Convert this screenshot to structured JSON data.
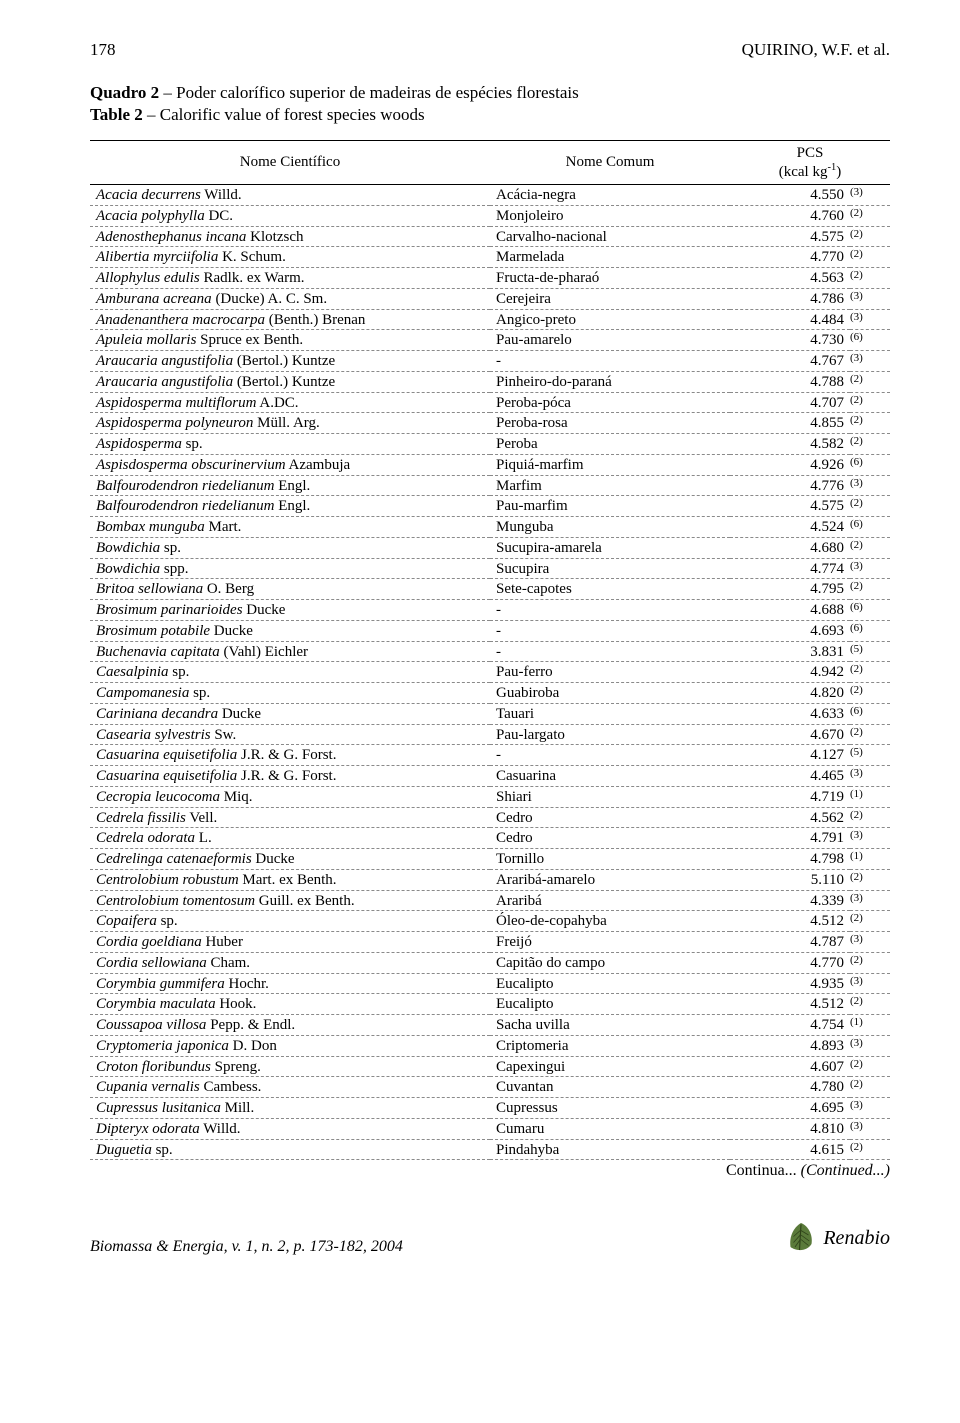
{
  "header": {
    "page_number": "178",
    "authors": "QUIRINO, W.F. et al."
  },
  "caption": {
    "line1_bold": "Quadro 2",
    "line1_rest": " – Poder  calorífico superior de madeiras de espécies florestais",
    "line2_bold": "Table 2",
    "line2_rest": " – Calorific value of forest species woods"
  },
  "columns": {
    "sci": "Nome Científico",
    "common": "Nome Comum",
    "pcs_line1": "PCS",
    "pcs_line2_pre": "(kcal kg",
    "pcs_line2_sup": "-1",
    "pcs_line2_post": ")"
  },
  "rows": [
    {
      "sci_it": "Acacia decurrens",
      "sci_rest": " Willd.",
      "common": "Acácia-negra",
      "pcs": "4.550",
      "ref": "(3)"
    },
    {
      "sci_it": "Acacia polyphylla",
      "sci_rest": " DC.",
      "common": "Monjoleiro",
      "pcs": "4.760",
      "ref": "(2)"
    },
    {
      "sci_it": "Adenosthephanus incana",
      "sci_rest": " Klotzsch",
      "common": "Carvalho-nacional",
      "pcs": "4.575",
      "ref": "(2)"
    },
    {
      "sci_it": "Alibertia myrciifolia",
      "sci_rest": " K. Schum.",
      "common": "Marmelada",
      "pcs": "4.770",
      "ref": "(2)"
    },
    {
      "sci_it": "Allophylus edulis",
      "sci_rest": " Radlk. ex Warm.",
      "common": "Fructa-de-pharaó",
      "pcs": "4.563",
      "ref": "(2)"
    },
    {
      "sci_it": "Amburana acreana",
      "sci_rest": " (Ducke) A. C. Sm.",
      "common": "Cerejeira",
      "pcs": "4.786",
      "ref": "(3)"
    },
    {
      "sci_it": "Anadenanthera macrocarpa",
      "sci_rest": " (Benth.) Brenan",
      "common": "Angico-preto",
      "pcs": "4.484",
      "ref": "(3)"
    },
    {
      "sci_it": "Apuleia mollaris",
      "sci_rest": " Spruce ex Benth.",
      "common": "Pau-amarelo",
      "pcs": "4.730",
      "ref": "(6)"
    },
    {
      "sci_it": "Araucaria angustifolia",
      "sci_rest": " (Bertol.) Kuntze",
      "common": "-",
      "pcs": "4.767",
      "ref": "(3)"
    },
    {
      "sci_it": "Araucaria angustifolia",
      "sci_rest": " (Bertol.) Kuntze",
      "common": "Pinheiro-do-paraná",
      "pcs": "4.788",
      "ref": "(2)"
    },
    {
      "sci_it": "Aspidosperma multiflorum",
      "sci_rest": " A.DC.",
      "common": "Peroba-póca",
      "pcs": "4.707",
      "ref": "(2)"
    },
    {
      "sci_it": "Aspidosperma polyneuron",
      "sci_rest": " Müll. Arg.",
      "common": "Peroba-rosa",
      "pcs": "4.855",
      "ref": "(2)"
    },
    {
      "sci_it": "Aspidosperma",
      "sci_rest": " sp.",
      "common": "Peroba",
      "pcs": "4.582",
      "ref": "(2)"
    },
    {
      "sci_it": "Aspisdosperma obscurinervium",
      "sci_rest": " Azambuja",
      "common": "Piquiá-marfim",
      "pcs": "4.926",
      "ref": "(6)"
    },
    {
      "sci_it": "Balfourodendron riedelianum",
      "sci_rest": " Engl.",
      "common": "Marfim",
      "pcs": "4.776",
      "ref": "(3)"
    },
    {
      "sci_it": "Balfourodendron riedelianum",
      "sci_rest": " Engl.",
      "common": "Pau-marfim",
      "pcs": "4.575",
      "ref": "(2)"
    },
    {
      "sci_it": "Bombax munguba",
      "sci_rest": " Mart.",
      "common": "Munguba",
      "pcs": "4.524",
      "ref": "(6)"
    },
    {
      "sci_it": "Bowdichia",
      "sci_rest": " sp.",
      "common": "Sucupira-amarela",
      "pcs": "4.680",
      "ref": "(2)"
    },
    {
      "sci_it": "Bowdichia",
      "sci_rest": " spp.",
      "common": "Sucupira",
      "pcs": "4.774",
      "ref": "(3)"
    },
    {
      "sci_it": "Britoa sellowiana",
      "sci_rest": " O. Berg",
      "common": "Sete-capotes",
      "pcs": "4.795",
      "ref": "(2)"
    },
    {
      "sci_it": "Brosimum parinarioides",
      "sci_rest": " Ducke",
      "common": "-",
      "pcs": "4.688",
      "ref": "(6)"
    },
    {
      "sci_it": "Brosimum potabile",
      "sci_rest": " Ducke",
      "common": "-",
      "pcs": "4.693",
      "ref": "(6)"
    },
    {
      "sci_it": "Buchenavia capitata",
      "sci_rest": " (Vahl) Eichler",
      "common": "-",
      "pcs": "3.831",
      "ref": "(5)"
    },
    {
      "sci_it": "Caesalpinia",
      "sci_rest": " sp.",
      "common": "Pau-ferro",
      "pcs": "4.942",
      "ref": "(2)"
    },
    {
      "sci_it": "Campomanesia",
      "sci_rest": " sp.",
      "common": "Guabiroba",
      "pcs": "4.820",
      "ref": "(2)"
    },
    {
      "sci_it": "Cariniana decandra",
      "sci_rest": " Ducke",
      "common": "Tauari",
      "pcs": "4.633",
      "ref": "(6)"
    },
    {
      "sci_it": "Casearia sylvestris",
      "sci_rest": " Sw.",
      "common": "Pau-largato",
      "pcs": "4.670",
      "ref": "(2)"
    },
    {
      "sci_it": "Casuarina equisetifolia",
      "sci_rest": " J.R. & G. Forst.",
      "common": "-",
      "pcs": "4.127",
      "ref": "(5)"
    },
    {
      "sci_it": "Casuarina equisetifolia",
      "sci_rest": " J.R. & G. Forst.",
      "common": "Casuarina",
      "pcs": "4.465",
      "ref": "(3)"
    },
    {
      "sci_it": "Cecropia leucocoma",
      "sci_rest": " Miq.",
      "common": "Shiari",
      "pcs": "4.719",
      "ref": "(1)"
    },
    {
      "sci_it": "Cedrela fissilis",
      "sci_rest": " Vell.",
      "common": "Cedro",
      "pcs": "4.562",
      "ref": "(2)"
    },
    {
      "sci_it": "Cedrela odorata",
      "sci_rest": " L.",
      "common": "Cedro",
      "pcs": "4.791",
      "ref": "(3)"
    },
    {
      "sci_it": "Cedrelinga catenaeformis",
      "sci_rest": " Ducke",
      "common": "Tornillo",
      "pcs": "4.798",
      "ref": "(1)"
    },
    {
      "sci_it": "Centrolobium robustum",
      "sci_rest": " Mart. ex Benth.",
      "common": "Araribá-amarelo",
      "pcs": "5.110",
      "ref": "(2)"
    },
    {
      "sci_it": "Centrolobium tomentosum",
      "sci_rest": " Guill. ex Benth.",
      "common": "Araribá",
      "pcs": "4.339",
      "ref": "(3)"
    },
    {
      "sci_it": "Copaifera",
      "sci_rest": " sp.",
      "common": "Óleo-de-copahyba",
      "pcs": "4.512",
      "ref": "(2)"
    },
    {
      "sci_it": "Cordia goeldiana",
      "sci_rest": " Huber",
      "common": "Freijó",
      "pcs": "4.787",
      "ref": "(3)"
    },
    {
      "sci_it": "Cordia sellowiana",
      "sci_rest": " Cham.",
      "common": "Capitão do campo",
      "pcs": "4.770",
      "ref": "(2)"
    },
    {
      "sci_it": "Corymbia gummifera",
      "sci_rest": " Hochr.",
      "common": "Eucalipto",
      "pcs": "4.935",
      "ref": "(3)"
    },
    {
      "sci_it": "Corymbia maculata",
      "sci_rest": " Hook.",
      "common": "Eucalipto",
      "pcs": "4.512",
      "ref": "(2)"
    },
    {
      "sci_it": "Coussapoa villosa",
      "sci_rest": " Pepp. & Endl.",
      "common": "Sacha uvilla",
      "pcs": "4.754",
      "ref": "(1)"
    },
    {
      "sci_it": "Cryptomeria japonica",
      "sci_rest": " D. Don",
      "common": "Criptomeria",
      "pcs": "4.893",
      "ref": "(3)"
    },
    {
      "sci_it": "Croton floribundus",
      "sci_rest": " Spreng.",
      "common": "Capexingui",
      "pcs": "4.607",
      "ref": "(2)"
    },
    {
      "sci_it": "Cupania vernalis",
      "sci_rest": " Cambess.",
      "common": "Cuvantan",
      "pcs": "4.780",
      "ref": "(2)"
    },
    {
      "sci_it": "Cupressus lusitanica",
      "sci_rest": " Mill.",
      "common": "Cupressus",
      "pcs": "4.695",
      "ref": "(3)"
    },
    {
      "sci_it": "Dipteryx odorata",
      "sci_rest": " Willd.",
      "common": "Cumaru",
      "pcs": "4.810",
      "ref": "(3)"
    },
    {
      "sci_it": "Duguetia",
      "sci_rest": " sp.",
      "common": "Pindahyba",
      "pcs": "4.615",
      "ref": "(2)"
    }
  ],
  "continua": {
    "text": "Continua...",
    "italic": " (Continued...)"
  },
  "footer": {
    "citation": "Biomassa & Energia, v. 1, n. 2, p. 173-182, 2004",
    "brand": "Renabio"
  }
}
